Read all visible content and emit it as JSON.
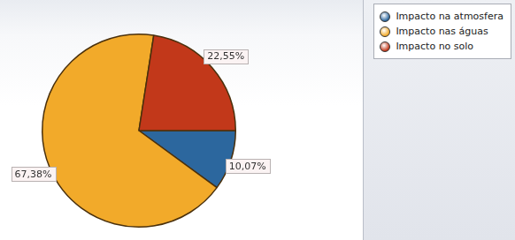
{
  "chart_data": {
    "type": "pie",
    "categories": [
      "Impacto na atmosfera",
      "Impacto nas águas",
      "Impacto no solo"
    ],
    "values": [
      10.07,
      67.38,
      22.55
    ],
    "value_labels": [
      "10,07%",
      "67,38%",
      "22,55%"
    ],
    "colors": [
      "#2c679e",
      "#f2aa2a",
      "#c2381a"
    ],
    "legend": "top-right",
    "data_labels": true
  }
}
